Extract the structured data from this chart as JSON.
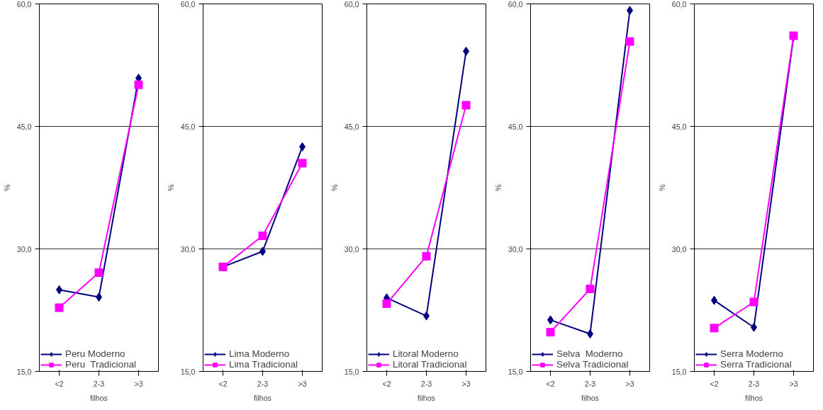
{
  "chart_data": [
    {
      "type": "line",
      "categories": [
        "<2",
        "2-3",
        ">3"
      ],
      "xlabel": "filhos",
      "ylabel": "%",
      "ylim": [
        15,
        60
      ],
      "yticks": [
        {
          "value": 15,
          "label": "15,0"
        },
        {
          "value": 30,
          "label": "30,0"
        },
        {
          "value": 45,
          "label": "45,0"
        },
        {
          "value": 60,
          "label": "60,0"
        }
      ],
      "grid": "y",
      "legend": "bottom left",
      "line_style": "solid",
      "series": [
        {
          "name": "Peru Moderno",
          "color": "#000080",
          "marker": "diamond",
          "values": [
            25.0,
            24.1,
            50.9
          ]
        },
        {
          "name": "Peru  Tradicional",
          "color": "#ff00ff",
          "marker": "square",
          "values": [
            22.8,
            27.1,
            50.1
          ]
        }
      ]
    },
    {
      "type": "line",
      "categories": [
        "<2",
        "2-3",
        ">3"
      ],
      "xlabel": "filhos",
      "ylabel": "%",
      "ylim": [
        15,
        60
      ],
      "yticks": [
        {
          "value": 15,
          "label": "15,0"
        },
        {
          "value": 30,
          "label": "30,0"
        },
        {
          "value": 45,
          "label": "45,0"
        },
        {
          "value": 60,
          "label": "60,0"
        }
      ],
      "grid": "y",
      "legend": "bottom left",
      "line_style": "solid",
      "series": [
        {
          "name": "Lima Moderno",
          "color": "#000080",
          "marker": "diamond",
          "values": [
            27.8,
            29.7,
            42.5
          ]
        },
        {
          "name": "Lima Tradicional",
          "color": "#ff00ff",
          "marker": "square",
          "values": [
            27.8,
            31.6,
            40.5
          ]
        }
      ]
    },
    {
      "type": "line",
      "categories": [
        "<2",
        "2-3",
        ">3"
      ],
      "xlabel": "filhos",
      "ylabel": "%",
      "ylim": [
        15,
        60
      ],
      "yticks": [
        {
          "value": 15,
          "label": "15,0"
        },
        {
          "value": 30,
          "label": "30,0"
        },
        {
          "value": 45,
          "label": "45,0"
        },
        {
          "value": 60,
          "label": "60,0"
        }
      ],
      "grid": "y",
      "legend": "bottom left",
      "line_style": "solid",
      "series": [
        {
          "name": "Litoral Moderno",
          "color": "#000080",
          "marker": "diamond",
          "values": [
            24.0,
            21.8,
            54.2
          ]
        },
        {
          "name": "Litoral Tradicional",
          "color": "#ff00ff",
          "marker": "square",
          "values": [
            23.3,
            29.1,
            47.6
          ]
        }
      ]
    },
    {
      "type": "line",
      "categories": [
        "<2",
        "2-3",
        ">3"
      ],
      "xlabel": "filhos",
      "ylabel": "%",
      "ylim": [
        15,
        60
      ],
      "yticks": [
        {
          "value": 15,
          "label": "15,0"
        },
        {
          "value": 30,
          "label": "30,0"
        },
        {
          "value": 45,
          "label": "45,0"
        },
        {
          "value": 60,
          "label": "60,0"
        }
      ],
      "grid": "y",
      "legend": "bottom left",
      "line_style": "solid",
      "series": [
        {
          "name": "Selva  Moderno",
          "color": "#000080",
          "marker": "diamond",
          "values": [
            21.3,
            19.6,
            59.2
          ]
        },
        {
          "name": "Selva Tradicional",
          "color": "#ff00ff",
          "marker": "square",
          "values": [
            19.8,
            25.1,
            55.4
          ]
        }
      ]
    },
    {
      "type": "line",
      "categories": [
        "<2",
        "2-3",
        ">3"
      ],
      "xlabel": "filhos",
      "ylabel": "%",
      "ylim": [
        15,
        60
      ],
      "yticks": [
        {
          "value": 15,
          "label": "15,0"
        },
        {
          "value": 30,
          "label": "30,0"
        },
        {
          "value": 45,
          "label": "45,0"
        },
        {
          "value": 60,
          "label": "60,0"
        }
      ],
      "grid": "y",
      "legend": "bottom left",
      "line_style": "solid",
      "series": [
        {
          "name": "Serra Moderno",
          "color": "#000080",
          "marker": "diamond",
          "values": [
            23.7,
            20.4,
            56.0
          ]
        },
        {
          "name": "Serra Tradicional",
          "color": "#ff00ff",
          "marker": "square",
          "values": [
            20.3,
            23.5,
            56.1
          ]
        }
      ]
    }
  ]
}
